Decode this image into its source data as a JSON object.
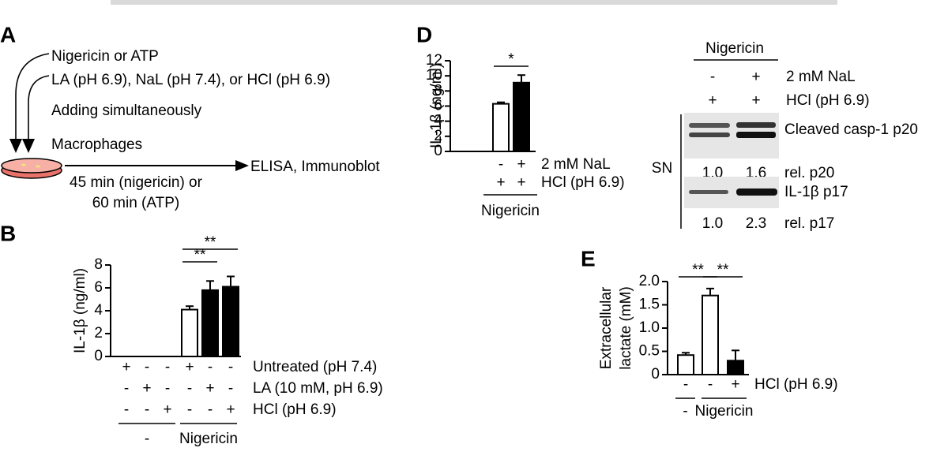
{
  "panel_a": {
    "label": "A",
    "lines": [
      "Nigericin or ATP",
      "LA (pH 6.9), NaL (pH 7.4), or HCl (pH 6.9)",
      "Adding simultaneously",
      "Macrophages"
    ],
    "output": "ELISA, Immunoblot",
    "time": [
      "45 min (nigericin) or",
      "60 min (ATP)"
    ]
  },
  "blot": {
    "group": "Nigericin",
    "rows": [
      {
        "signs": [
          "-",
          "+"
        ],
        "label": "2 mM NaL"
      },
      {
        "signs": [
          "+",
          "+"
        ],
        "label": "HCl (pH 6.9)"
      }
    ],
    "fraction": "SN",
    "bands": [
      {
        "label": "Cleaved casp-1 p20",
        "rel": [
          "1.0",
          "1.6"
        ],
        "rel_label": "rel. p20"
      },
      {
        "label": "IL-1β p17",
        "rel": [
          "1.0",
          "2.3"
        ],
        "rel_label": "rel. p17"
      }
    ]
  },
  "chart_data": [
    {
      "type": "bar",
      "panel": "B",
      "ylabel": "IL-1β (ng/ml)",
      "values": [
        0,
        0,
        0,
        4.1,
        5.8,
        6.1
      ],
      "errors": [
        null,
        null,
        null,
        0.3,
        0.8,
        0.9
      ],
      "colors": [
        "#ffffff",
        "#000000",
        "#000000",
        "#ffffff",
        "#000000",
        "#000000"
      ],
      "ylim": [
        0,
        8
      ],
      "yticks": [
        0,
        2,
        4,
        6,
        8
      ],
      "significance": [
        "**",
        "**"
      ],
      "rows": [
        {
          "label": "Untreated (pH 7.4)",
          "signs": [
            "+",
            "-",
            "-",
            "+",
            "-",
            "-"
          ]
        },
        {
          "label": "LA (10 mM, pH 6.9)",
          "signs": [
            "-",
            "+",
            "-",
            "-",
            "+",
            "-"
          ]
        },
        {
          "label": "HCl (pH 6.9)",
          "signs": [
            "-",
            "-",
            "+",
            "-",
            "-",
            "+"
          ]
        }
      ],
      "groups": [
        "-",
        "Nigericin"
      ]
    },
    {
      "type": "bar",
      "panel": "D",
      "ylabel": "IL-1β (ng/ml)",
      "values": [
        6.3,
        9.1
      ],
      "errors": [
        0.2,
        1.0
      ],
      "colors": [
        "#ffffff",
        "#000000"
      ],
      "ylim": [
        0,
        12
      ],
      "yticks": [
        0,
        2,
        4,
        6,
        8,
        10,
        12
      ],
      "significance": [
        "*"
      ],
      "rows": [
        {
          "label": "2 mM NaL",
          "signs": [
            "-",
            "+"
          ]
        },
        {
          "label": "HCl (pH 6.9)",
          "signs": [
            "+",
            "+"
          ]
        }
      ],
      "groups": [
        "Nigericin"
      ]
    },
    {
      "type": "bar",
      "panel": "E",
      "ylabel": [
        "Extracellular",
        "lactate (mM)"
      ],
      "values": [
        0.42,
        1.7,
        0.3
      ],
      "errors": [
        0.05,
        0.15,
        0.22
      ],
      "colors": [
        "#ffffff",
        "#ffffff",
        "#000000"
      ],
      "ylim": [
        0,
        2
      ],
      "yticks": [
        0,
        0.5,
        {
          "value": 1,
          "label": "1.0"
        },
        1.5,
        {
          "value": 2,
          "label": "2.0"
        }
      ],
      "significance": [
        "**",
        "**"
      ],
      "rows": [
        {
          "label": "HCl (pH 6.9)",
          "signs": [
            "-",
            "-",
            "+"
          ]
        }
      ],
      "groups": [
        "-",
        "Nigericin"
      ]
    }
  ]
}
